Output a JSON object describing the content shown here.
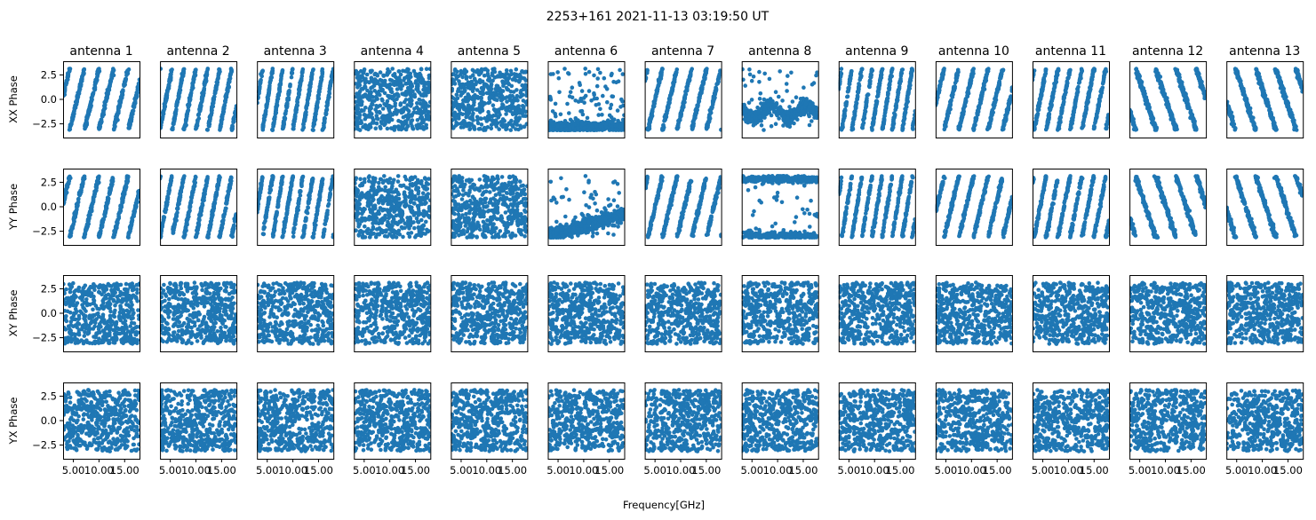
{
  "chart_data": {
    "type": "scatter",
    "title": "2253+161 2021-11-13 03:19:50 UT",
    "xlabel": "Frequency[GHz]",
    "columns": [
      "antenna 1",
      "antenna 2",
      "antenna 3",
      "antenna 4",
      "antenna 5",
      "antenna 6",
      "antenna 7",
      "antenna 8",
      "antenna 9",
      "antenna 10",
      "antenna 11",
      "antenna 12",
      "antenna 13"
    ],
    "rows": [
      {
        "ylabel": "XX Phase",
        "pattern": [
          "bands",
          "bands",
          "bands",
          "noise",
          "noise",
          "ant6xx",
          "bands",
          "ant8xx",
          "bands",
          "bands",
          "bands",
          "diag",
          "diag"
        ]
      },
      {
        "ylabel": "YY Phase",
        "pattern": [
          "bands",
          "bands",
          "bands",
          "noise",
          "noise",
          "ant6yy",
          "bands",
          "ant8yy",
          "bands",
          "bands",
          "bands",
          "diag",
          "diag"
        ]
      },
      {
        "ylabel": "XY Phase",
        "pattern": [
          "noise",
          "noise",
          "noise",
          "noise",
          "noise",
          "noise",
          "noise",
          "noise",
          "noise",
          "noise",
          "noise",
          "noise",
          "noise"
        ]
      },
      {
        "ylabel": "YX Phase",
        "pattern": [
          "noise",
          "noise",
          "noise",
          "noise",
          "noise",
          "noise",
          "noise",
          "noise",
          "noise",
          "noise",
          "noise",
          "noise",
          "noise"
        ]
      }
    ],
    "xlim": [
      3.0,
      17.9
    ],
    "ylim": [
      -3.9,
      3.9
    ],
    "x_range": [
      3.0,
      17.9
    ],
    "y_range": [
      -3.14,
      3.14
    ],
    "points_per_panel": 520,
    "xticks": [
      5.0,
      10.0,
      15.0
    ],
    "xtick_labels": [
      "5.00",
      "10.00",
      "15.00"
    ],
    "yticks": [
      2.5,
      0.0,
      -2.5
    ],
    "ytick_labels": [
      "2.5",
      "0.0",
      "−2.5"
    ],
    "marker_color": "#1f77b4",
    "grid": false,
    "legend": "none"
  }
}
